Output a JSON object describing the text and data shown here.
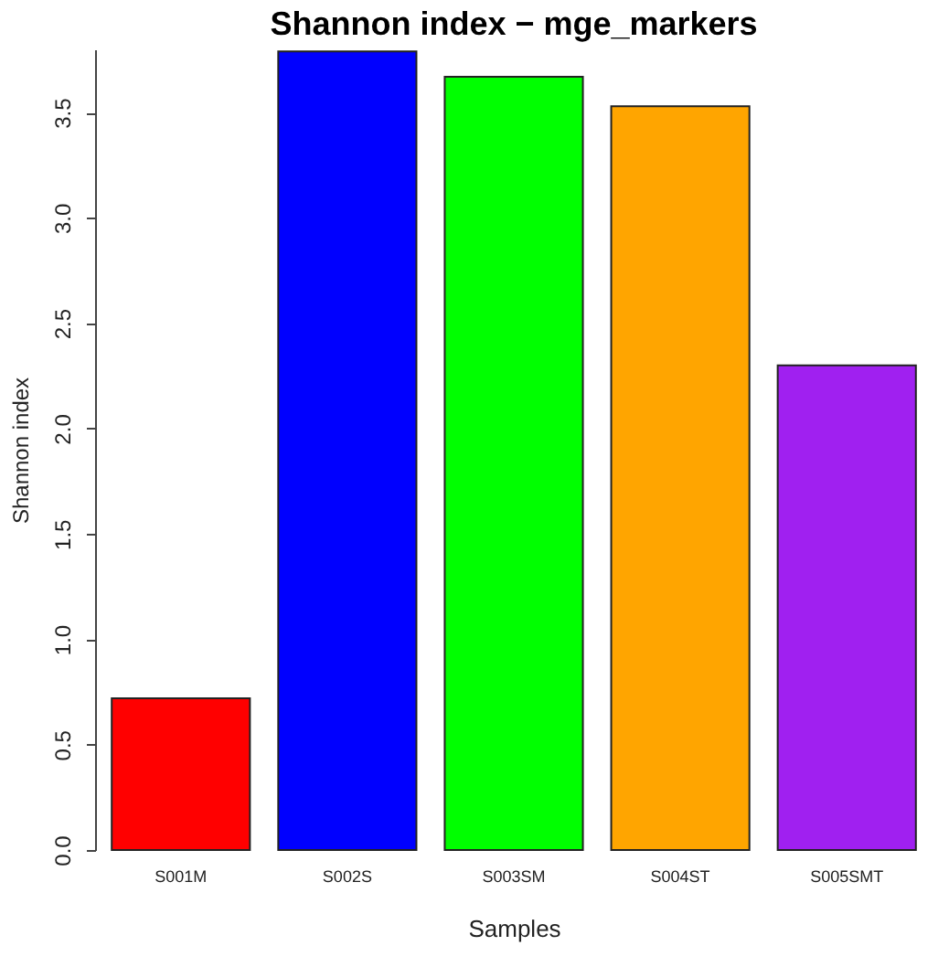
{
  "chart_data": {
    "type": "bar",
    "title": "Shannon index − mge_markers",
    "xlabel": "Samples",
    "ylabel": "Shannon index",
    "categories": [
      "S001M",
      "S002S",
      "S003SM",
      "S004ST",
      "S005SMT"
    ],
    "values": [
      0.72,
      3.79,
      3.67,
      3.53,
      2.3
    ],
    "colors": [
      "#ff0000",
      "#0000ff",
      "#00ff00",
      "#ffa500",
      "#a020f0"
    ],
    "ylim": [
      0,
      3.8
    ],
    "yticks": [
      {
        "value": 0,
        "label": "0.0"
      },
      0.5,
      {
        "value": 1,
        "label": "1.0"
      },
      1.5,
      {
        "value": 2,
        "label": "2.0"
      },
      2.5,
      {
        "value": 3,
        "label": "3.0"
      },
      3.5
    ],
    "grid": false,
    "legend": false
  }
}
